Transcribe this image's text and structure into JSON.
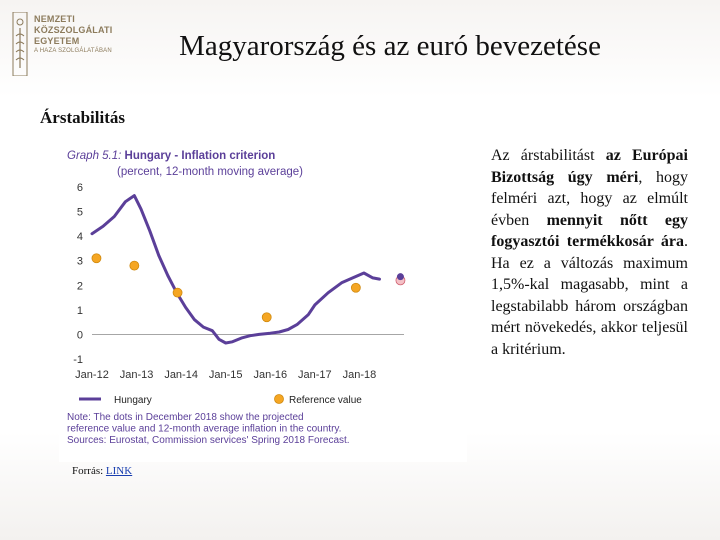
{
  "logo": {
    "line1": "NEMZETI",
    "line2": "KÖZSZOLGÁLATI",
    "line3": "EGYETEM",
    "line4": "A HAZA SZOLGÁLATÁBAN",
    "color": "#8c7b5c"
  },
  "header": {
    "title": "Magyarország és az euró bevezetése"
  },
  "section": {
    "title": "Árstabilitás"
  },
  "source": {
    "label": "Forrás: ",
    "link_text": "LINK"
  },
  "description": {
    "p1": "Az árstabilitást ",
    "p2": "az Európai Bizottság úgy méri",
    "p3": ", hogy felméri azt, hogy az elmúlt évben ",
    "p4": "mennyit nőtt egy fogyasztói termékkosár ára",
    "p5": ". Ha ez a változás maximum 1,5%-kal magasabb, mint a legstabilabb három országban mért növekedés, akkor teljesül a kritérium."
  },
  "chart_data": {
    "type": "line",
    "title_prefix": "Graph 5.1: ",
    "title": "Hungary - Inflation criterion",
    "subtitle": "(percent, 12-month moving average)",
    "xlabels": [
      "Jan-12",
      "Jan-13",
      "Jan-14",
      "Jan-15",
      "Jan-16",
      "Jan-17",
      "Jan-18"
    ],
    "ylim": [
      -1,
      6
    ],
    "yticks": [
      -1,
      0,
      1,
      2,
      3,
      4,
      5,
      6
    ],
    "line_color": "#5b3f99",
    "dot_color": "#f5a623",
    "series": [
      {
        "name": "Hungary",
        "points": [
          [
            2012.0,
            4.1
          ],
          [
            2012.25,
            4.4
          ],
          [
            2012.5,
            4.8
          ],
          [
            2012.75,
            5.4
          ],
          [
            2012.95,
            5.65
          ],
          [
            2013.1,
            5.1
          ],
          [
            2013.3,
            4.2
          ],
          [
            2013.5,
            3.2
          ],
          [
            2013.7,
            2.4
          ],
          [
            2013.9,
            1.7
          ],
          [
            2014.1,
            1.1
          ],
          [
            2014.3,
            0.6
          ],
          [
            2014.5,
            0.3
          ],
          [
            2014.7,
            0.15
          ],
          [
            2014.85,
            -0.2
          ],
          [
            2015.0,
            -0.35
          ],
          [
            2015.15,
            -0.3
          ],
          [
            2015.35,
            -0.15
          ],
          [
            2015.55,
            -0.05
          ],
          [
            2015.75,
            0.0
          ],
          [
            2016.0,
            0.05
          ],
          [
            2016.2,
            0.1
          ],
          [
            2016.4,
            0.2
          ],
          [
            2016.6,
            0.4
          ],
          [
            2016.85,
            0.8
          ],
          [
            2017.0,
            1.2
          ],
          [
            2017.3,
            1.7
          ],
          [
            2017.6,
            2.1
          ],
          [
            2017.85,
            2.3
          ],
          [
            2018.1,
            2.5
          ],
          [
            2018.3,
            2.3
          ],
          [
            2018.45,
            2.25
          ]
        ]
      },
      {
        "name": "Reference value",
        "points": [
          [
            2012.1,
            3.1
          ],
          [
            2012.95,
            2.8
          ],
          [
            2013.92,
            1.7
          ],
          [
            2015.92,
            0.7
          ],
          [
            2017.92,
            1.9
          ],
          [
            2018.92,
            2.2
          ]
        ]
      }
    ],
    "projection_dot": [
      2018.92,
      2.35
    ],
    "note_lines": [
      "Note: The dots  in December 2018 show the projected",
      "reference value and 12-month average inflation in the country.",
      "Sources: Eurostat, Commission services' Spring 2018 Forecast."
    ]
  }
}
